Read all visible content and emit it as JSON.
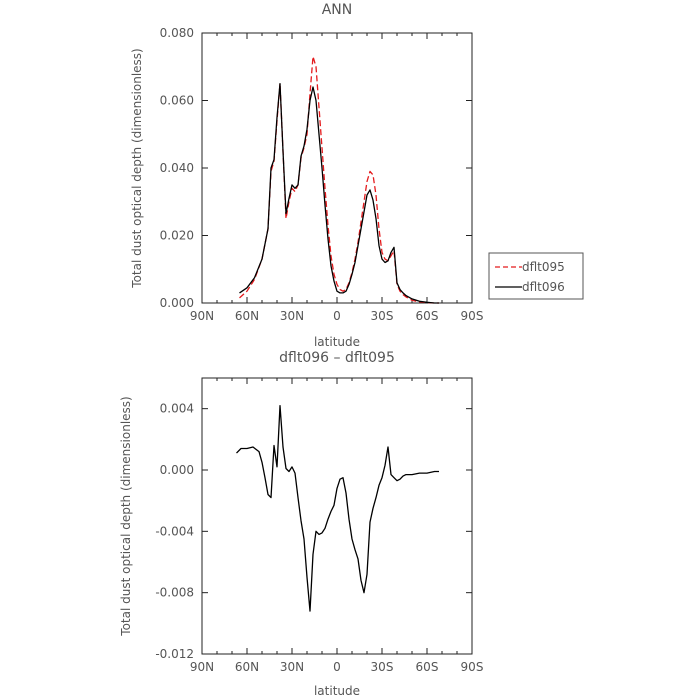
{
  "chart_data": [
    {
      "type": "line",
      "title": "ANN",
      "xlabel": "latitude",
      "ylabel": "Total dust optical depth (dimensionless)",
      "xlim": [
        90,
        -90
      ],
      "ylim": [
        0,
        0.08
      ],
      "x_ticks": [
        90,
        60,
        30,
        0,
        -30,
        -60,
        -90
      ],
      "x_tick_labels": [
        "90N",
        "60N",
        "30N",
        "0",
        "30S",
        "60S",
        "90S"
      ],
      "y_ticks": [
        0,
        0.02,
        0.04,
        0.06,
        0.08
      ],
      "y_tick_labels": [
        "0.000",
        "0.020",
        "0.040",
        "0.060",
        "0.080"
      ],
      "legend": {
        "placement": "right"
      },
      "series": [
        {
          "name": "dflt095",
          "color": "#e41a1c",
          "dash": "dashed",
          "x": [
            65,
            60,
            55,
            50,
            46,
            44,
            42,
            40,
            38,
            36,
            34,
            32,
            30,
            28,
            26,
            24,
            22,
            20,
            18,
            16,
            14,
            12,
            10,
            8,
            6,
            4,
            2,
            0,
            -2,
            -4,
            -6,
            -8,
            -10,
            -12,
            -14,
            -16,
            -18,
            -20,
            -22,
            -24,
            -26,
            -28,
            -30,
            -32,
            -34,
            -36,
            -38,
            -40,
            -42,
            -44,
            -46,
            -50,
            -55,
            -60,
            -65,
            -68
          ],
          "y": [
            0.0015,
            0.0035,
            0.007,
            0.013,
            0.022,
            0.039,
            0.042,
            0.054,
            0.065,
            0.045,
            0.025,
            0.03,
            0.034,
            0.033,
            0.035,
            0.043,
            0.046,
            0.05,
            0.062,
            0.073,
            0.07,
            0.058,
            0.046,
            0.034,
            0.023,
            0.014,
            0.0085,
            0.0055,
            0.004,
            0.0035,
            0.004,
            0.006,
            0.009,
            0.013,
            0.018,
            0.024,
            0.03,
            0.036,
            0.039,
            0.038,
            0.032,
            0.022,
            0.015,
            0.013,
            0.0125,
            0.014,
            0.0155,
            0.0055,
            0.0035,
            0.0025,
            0.0018,
            0.0008,
            0.0003,
            0.0001,
            0.0,
            0.0
          ]
        },
        {
          "name": "dflt096",
          "color": "#000000",
          "dash": "solid",
          "x": [
            65,
            60,
            55,
            50,
            46,
            44,
            42,
            40,
            38,
            36,
            34,
            32,
            30,
            28,
            26,
            24,
            22,
            20,
            18,
            16,
            14,
            12,
            10,
            8,
            6,
            4,
            2,
            0,
            -2,
            -4,
            -6,
            -8,
            -10,
            -12,
            -14,
            -16,
            -18,
            -20,
            -22,
            -24,
            -26,
            -28,
            -30,
            -32,
            -34,
            -36,
            -38,
            -40,
            -42,
            -44,
            -46,
            -50,
            -55,
            -60,
            -65,
            -68
          ],
          "y": [
            0.003,
            0.0045,
            0.0075,
            0.013,
            0.022,
            0.04,
            0.0425,
            0.055,
            0.065,
            0.045,
            0.0265,
            0.031,
            0.035,
            0.034,
            0.035,
            0.0435,
            0.0465,
            0.0515,
            0.06,
            0.064,
            0.06,
            0.05,
            0.04,
            0.029,
            0.019,
            0.011,
            0.0065,
            0.0035,
            0.003,
            0.003,
            0.0035,
            0.0055,
            0.0085,
            0.012,
            0.017,
            0.022,
            0.027,
            0.032,
            0.0335,
            0.0305,
            0.025,
            0.017,
            0.013,
            0.012,
            0.0125,
            0.015,
            0.0165,
            0.006,
            0.004,
            0.003,
            0.0022,
            0.0012,
            0.0005,
            0.0002,
            0.0,
            0.0
          ]
        }
      ]
    },
    {
      "type": "line",
      "title": "dflt096 – dflt095",
      "xlabel": "latitude",
      "ylabel": "Total dust optical depth (dimensionless)",
      "xlim": [
        90,
        -90
      ],
      "ylim": [
        -0.012,
        0.006
      ],
      "x_ticks": [
        90,
        60,
        30,
        0,
        -30,
        -60,
        -90
      ],
      "x_tick_labels": [
        "90N",
        "60N",
        "30N",
        "0",
        "30S",
        "60S",
        "90S"
      ],
      "y_ticks": [
        -0.012,
        -0.008,
        -0.004,
        0,
        0.004
      ],
      "y_tick_labels": [
        "-0.012",
        "-0.008",
        "-0.004",
        "0.000",
        "0.004"
      ],
      "series": [
        {
          "color": "#000000",
          "dash": "solid",
          "x": [
            67,
            64,
            60,
            56,
            52,
            50,
            48,
            46,
            44,
            42,
            40,
            38,
            36,
            34,
            32,
            30,
            28,
            26,
            24,
            22,
            20,
            18,
            16,
            14,
            12,
            10,
            8,
            6,
            4,
            2,
            0,
            -2,
            -4,
            -6,
            -8,
            -10,
            -12,
            -14,
            -16,
            -18,
            -20,
            -22,
            -24,
            -26,
            -28,
            -30,
            -32,
            -34,
            -36,
            -38,
            -40,
            -42,
            -44,
            -46,
            -50,
            -55,
            -60,
            -65,
            -68
          ],
          "y": [
            0.0011,
            0.0014,
            0.0014,
            0.0015,
            0.0012,
            0.0005,
            -0.0005,
            -0.0016,
            -0.0018,
            0.0016,
            0.0002,
            0.0042,
            0.0015,
            0.0001,
            -0.0001,
            0.0002,
            -0.0002,
            -0.0018,
            -0.0033,
            -0.0045,
            -0.007,
            -0.0092,
            -0.0055,
            -0.004,
            -0.0042,
            -0.0041,
            -0.0038,
            -0.0032,
            -0.0027,
            -0.0023,
            -0.0012,
            -0.0006,
            -0.0005,
            -0.0015,
            -0.0032,
            -0.0045,
            -0.0052,
            -0.0058,
            -0.0072,
            -0.008,
            -0.0068,
            -0.0034,
            -0.0025,
            -0.0018,
            -0.001,
            -0.0005,
            0.0003,
            0.0015,
            -0.0003,
            -0.0005,
            -0.0007,
            -0.0006,
            -0.0004,
            -0.0003,
            -0.0003,
            -0.0002,
            -0.0002,
            -0.0001,
            -0.0001
          ]
        }
      ]
    }
  ]
}
